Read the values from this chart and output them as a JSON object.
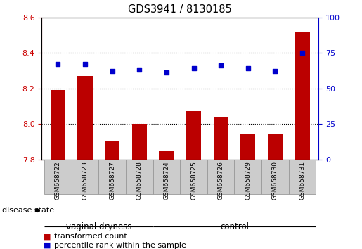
{
  "title": "GDS3941 / 8130185",
  "samples": [
    "GSM658722",
    "GSM658723",
    "GSM658727",
    "GSM658728",
    "GSM658724",
    "GSM658725",
    "GSM658726",
    "GSM658729",
    "GSM658730",
    "GSM658731"
  ],
  "transformed_count": [
    8.19,
    8.27,
    7.9,
    8.0,
    7.85,
    8.07,
    8.04,
    7.94,
    7.94,
    8.52
  ],
  "percentile_rank": [
    67,
    67,
    62,
    63,
    61,
    64,
    66,
    64,
    62,
    75
  ],
  "ylim_left": [
    7.8,
    8.6
  ],
  "ylim_right": [
    0,
    100
  ],
  "yticks_left": [
    7.8,
    8.0,
    8.2,
    8.4,
    8.6
  ],
  "yticks_right": [
    0,
    25,
    50,
    75,
    100
  ],
  "bar_color": "#bb0000",
  "dot_color": "#0000cc",
  "group1_label": "vaginal dryness",
  "group2_label": "control",
  "group1_indices": [
    0,
    1,
    2,
    3
  ],
  "group2_indices": [
    4,
    5,
    6,
    7,
    8,
    9
  ],
  "disease_state_label": "disease state",
  "legend_bar_label": "transformed count",
  "legend_dot_label": "percentile rank within the sample",
  "group_fill_color": "#66ee66",
  "group_edge_color": "#000000",
  "tick_box_color": "#cccccc",
  "xlabel_color_left": "#cc0000",
  "xlabel_color_right": "#0000cc",
  "bar_width": 0.55
}
